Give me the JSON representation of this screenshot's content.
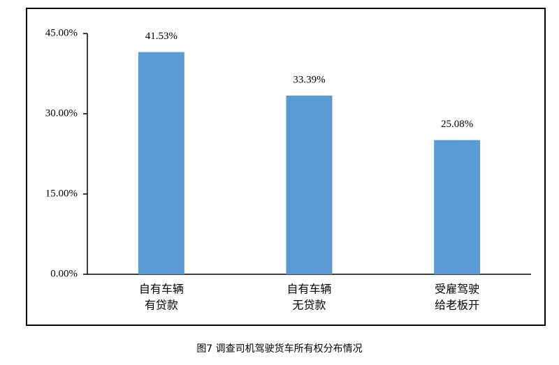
{
  "chart_data": {
    "type": "bar",
    "title": "图7 调查司机驾驶货车所有权分布情况",
    "categories": [
      [
        "自有车辆",
        "有贷款"
      ],
      [
        "自有车辆",
        "无贷款"
      ],
      [
        "受雇驾驶",
        "给老板开"
      ]
    ],
    "values": [
      41.53,
      33.39,
      25.08
    ],
    "value_labels": [
      "41.53%",
      "33.39%",
      "25.08%"
    ],
    "color": "#5b9bd5",
    "ylim": [
      0,
      45
    ],
    "yticks": [
      {
        "value": 0,
        "label": "0.00%"
      },
      {
        "value": 15,
        "label": "15.00%"
      },
      {
        "value": 30,
        "label": "30.00%"
      },
      {
        "value": 45,
        "label": "45.00%"
      }
    ],
    "grid": false
  }
}
